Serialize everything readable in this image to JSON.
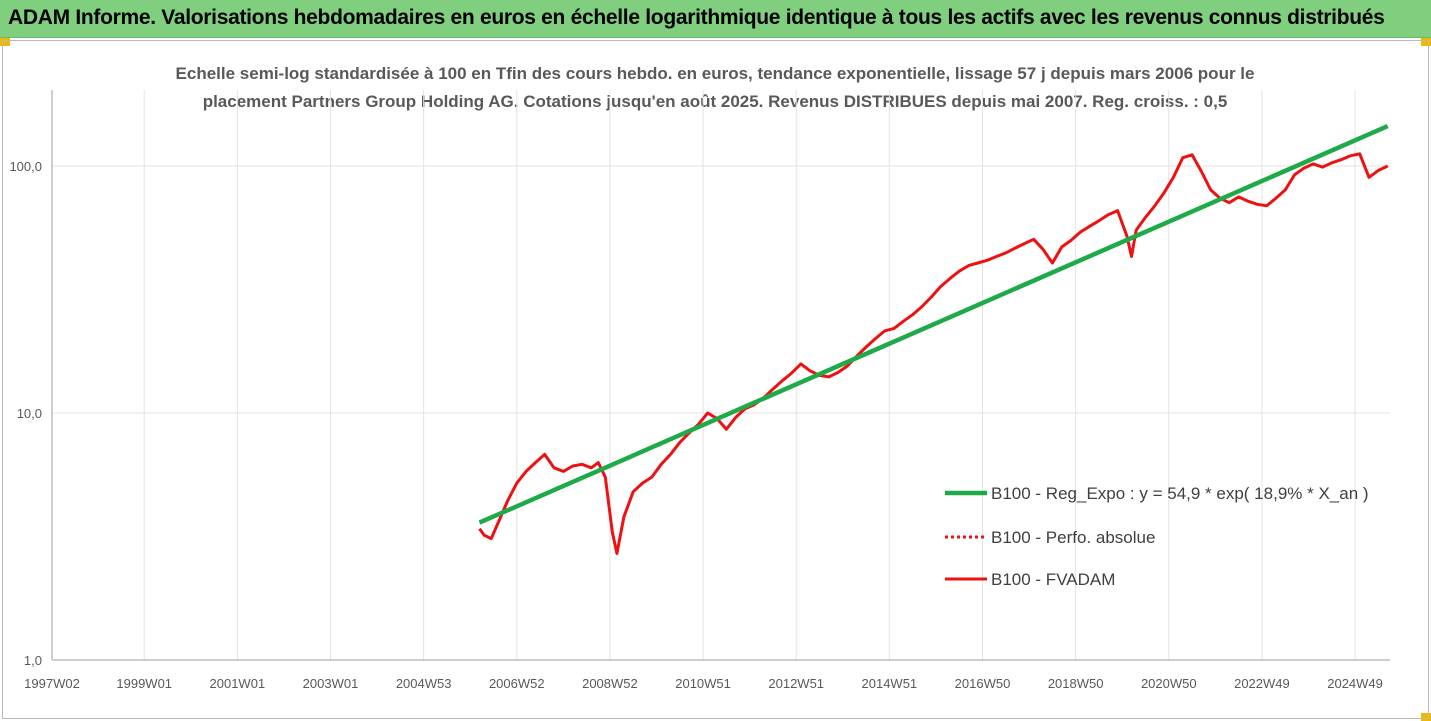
{
  "header": {
    "title": "ADAM Informe. Valorisations hebdomadaires en euros en échelle logarithmique identique à tous les actifs avec les revenus connus distribués"
  },
  "chart_data": {
    "type": "line",
    "title_line1": "Echelle semi-log standardisée à 100 en Tfin des cours hebdo. en euros, tendance exponentielle, lissage 57 j depuis mars 2006 pour le",
    "title_line2": "placement Partners Group Holding AG. Cotations jusqu'en août 2025. Revenus DISTRIBUES depuis mai 2007. Reg. croiss. : 0,5",
    "y_scale": "log",
    "ylim": [
      1,
      200
    ],
    "y_ticks": [
      {
        "value": 1,
        "label": "1,0"
      },
      {
        "value": 10,
        "label": "10,0"
      },
      {
        "value": 100,
        "label": "100,0"
      }
    ],
    "xlim": [
      1997.02,
      2025.75
    ],
    "x_ticks": [
      {
        "value": 1997.02,
        "label": "1997W02"
      },
      {
        "value": 1999.0,
        "label": "1999W01"
      },
      {
        "value": 2001.0,
        "label": "2001W01"
      },
      {
        "value": 2003.0,
        "label": "2003W01"
      },
      {
        "value": 2005.0,
        "label": "2004W53"
      },
      {
        "value": 2007.0,
        "label": "2006W52"
      },
      {
        "value": 2009.0,
        "label": "2008W52"
      },
      {
        "value": 2011.0,
        "label": "2010W51"
      },
      {
        "value": 2013.0,
        "label": "2012W51"
      },
      {
        "value": 2015.0,
        "label": "2014W51"
      },
      {
        "value": 2017.0,
        "label": "2016W50"
      },
      {
        "value": 2019.0,
        "label": "2018W50"
      },
      {
        "value": 2021.0,
        "label": "2020W50"
      },
      {
        "value": 2023.0,
        "label": "2022W49"
      },
      {
        "value": 2025.0,
        "label": "2024W49"
      }
    ],
    "grid": "vertical",
    "legend_position": "right",
    "series": [
      {
        "name": "B100 - Reg_Expo : y = 54,9 * exp( 18,9% *  X_an )",
        "color": "#1faa4a",
        "style": "solid",
        "x": [
          2006.2,
          2025.7
        ],
        "y": [
          3.6,
          145
        ]
      },
      {
        "name": "B100 - Perfo. absolue",
        "color": "#ee1111",
        "style": "dotted",
        "x": [],
        "y": []
      },
      {
        "name": "B100 - FVADAM",
        "color": "#ee1111",
        "style": "solid",
        "x": [
          2006.2,
          2006.3,
          2006.45,
          2006.6,
          2006.8,
          2007.0,
          2007.2,
          2007.4,
          2007.6,
          2007.8,
          2008.0,
          2008.2,
          2008.4,
          2008.6,
          2008.75,
          2008.9,
          2009.05,
          2009.15,
          2009.3,
          2009.5,
          2009.7,
          2009.9,
          2010.1,
          2010.3,
          2010.5,
          2010.7,
          2010.9,
          2011.1,
          2011.3,
          2011.5,
          2011.7,
          2011.9,
          2012.1,
          2012.3,
          2012.5,
          2012.7,
          2012.9,
          2013.1,
          2013.3,
          2013.5,
          2013.7,
          2013.9,
          2014.1,
          2014.3,
          2014.5,
          2014.7,
          2014.9,
          2015.1,
          2015.3,
          2015.5,
          2015.7,
          2015.9,
          2016.1,
          2016.3,
          2016.5,
          2016.7,
          2016.9,
          2017.1,
          2017.3,
          2017.5,
          2017.7,
          2017.9,
          2018.1,
          2018.3,
          2018.5,
          2018.7,
          2018.9,
          2019.1,
          2019.3,
          2019.5,
          2019.7,
          2019.9,
          2020.1,
          2020.2,
          2020.3,
          2020.5,
          2020.7,
          2020.9,
          2021.1,
          2021.3,
          2021.5,
          2021.7,
          2021.9,
          2022.1,
          2022.3,
          2022.5,
          2022.7,
          2022.9,
          2023.1,
          2023.3,
          2023.5,
          2023.7,
          2023.9,
          2024.1,
          2024.3,
          2024.5,
          2024.7,
          2024.9,
          2025.1,
          2025.3,
          2025.5,
          2025.7
        ],
        "y": [
          3.4,
          3.2,
          3.1,
          3.6,
          4.4,
          5.2,
          5.8,
          6.3,
          6.8,
          6.0,
          5.8,
          6.1,
          6.2,
          6.0,
          6.3,
          5.5,
          3.3,
          2.7,
          3.8,
          4.8,
          5.2,
          5.5,
          6.2,
          6.8,
          7.6,
          8.3,
          9.0,
          10.0,
          9.5,
          8.6,
          9.6,
          10.4,
          10.8,
          11.5,
          12.5,
          13.5,
          14.5,
          15.8,
          14.8,
          14.2,
          14.0,
          14.6,
          15.5,
          17.0,
          18.5,
          20.0,
          21.5,
          22.0,
          23.5,
          25.0,
          27.0,
          29.5,
          32.5,
          35.0,
          37.5,
          39.5,
          40.5,
          41.5,
          43.0,
          44.5,
          46.5,
          48.5,
          50.5,
          46.0,
          40.5,
          47.0,
          50.0,
          54.0,
          57.0,
          60.0,
          63.5,
          66.0,
          52.0,
          43.0,
          55.0,
          62.0,
          69.0,
          78.0,
          90.0,
          108.0,
          111.0,
          95.0,
          80.0,
          74.0,
          71.0,
          75.0,
          72.0,
          70.0,
          69.0,
          74.0,
          80.0,
          92.0,
          98.0,
          102.0,
          99.0,
          103.0,
          106.0,
          110.0,
          112.0,
          90.0,
          96.0,
          100.0
        ]
      }
    ]
  }
}
